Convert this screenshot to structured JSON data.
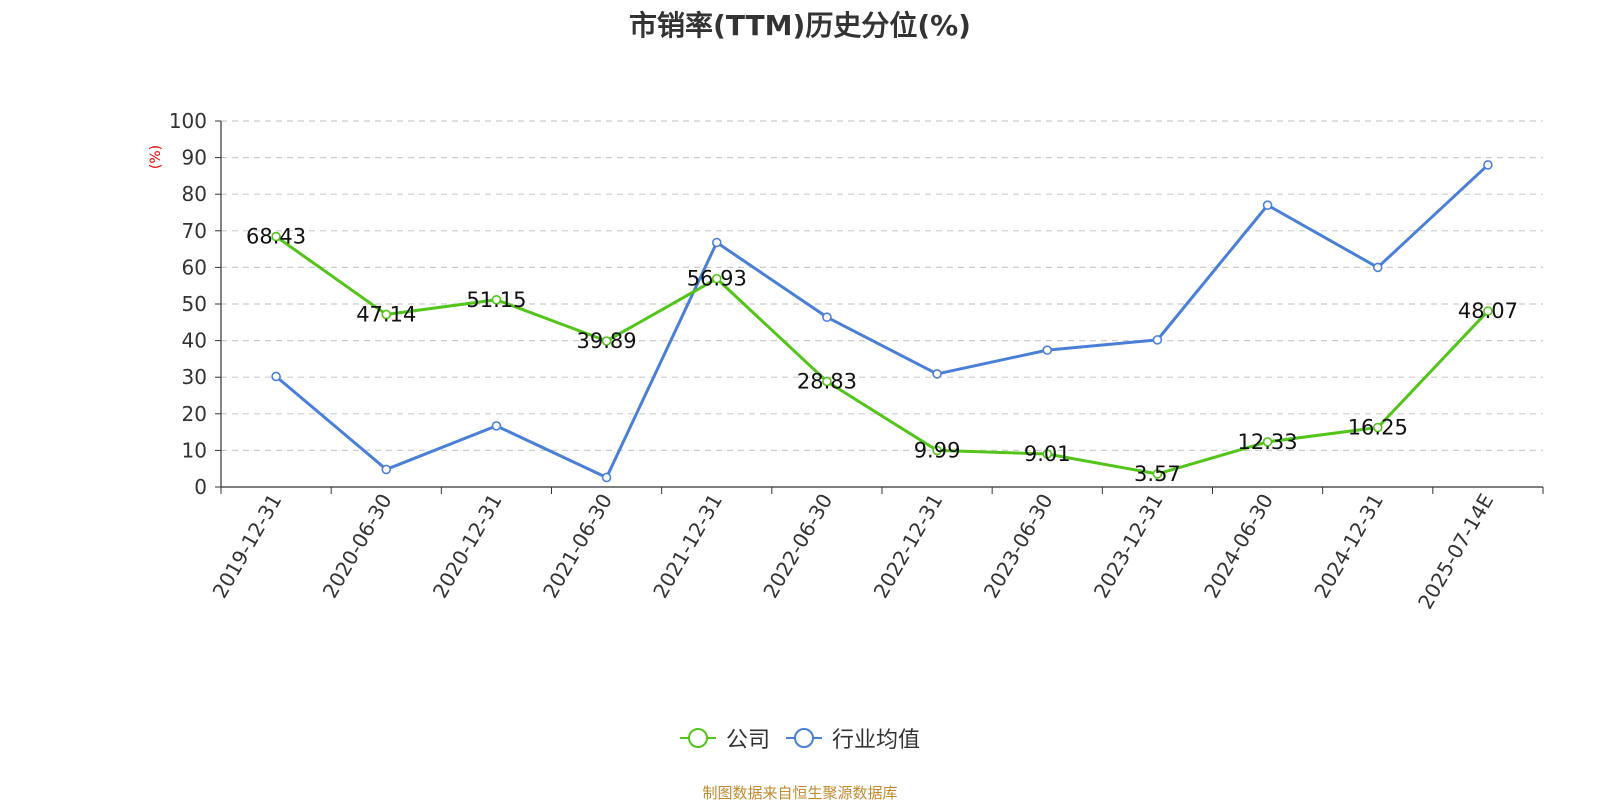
{
  "chart_data": {
    "type": "line",
    "title": "市销率(TTM)历史分位(%)",
    "ylabel": "(%)",
    "ylim": [
      0,
      100
    ],
    "yticks": [
      0,
      10,
      20,
      30,
      40,
      50,
      60,
      70,
      80,
      90,
      100
    ],
    "categories": [
      "2019-12-31",
      "2020-06-30",
      "2020-12-31",
      "2021-06-30",
      "2021-12-31",
      "2022-06-30",
      "2022-12-31",
      "2023-06-30",
      "2023-12-31",
      "2024-06-30",
      "2024-12-31",
      "2025-07-14E"
    ],
    "grid": true,
    "legend_position": "bottom",
    "series": [
      {
        "name": "公司",
        "color": "#52c41a",
        "values": [
          68.43,
          47.14,
          51.15,
          39.89,
          56.93,
          28.83,
          9.99,
          9.01,
          3.57,
          12.33,
          16.25,
          48.07
        ],
        "labels": [
          "68.43",
          "47.14",
          "51.15",
          "39.89",
          "56.93",
          "28.83",
          "9.99",
          "9.01",
          "3.57",
          "12.33",
          "16.25",
          "48.07"
        ]
      },
      {
        "name": "行业均值",
        "color": "#4a7fd8",
        "values": [
          30.2,
          4.8,
          16.7,
          2.6,
          66.8,
          46.4,
          30.9,
          37.4,
          40.2,
          77.0,
          60.0,
          88.0
        ]
      }
    ]
  },
  "legend": {
    "company": "公司",
    "industry": "行业均值"
  },
  "source": "制图数据来自恒生聚源数据库"
}
